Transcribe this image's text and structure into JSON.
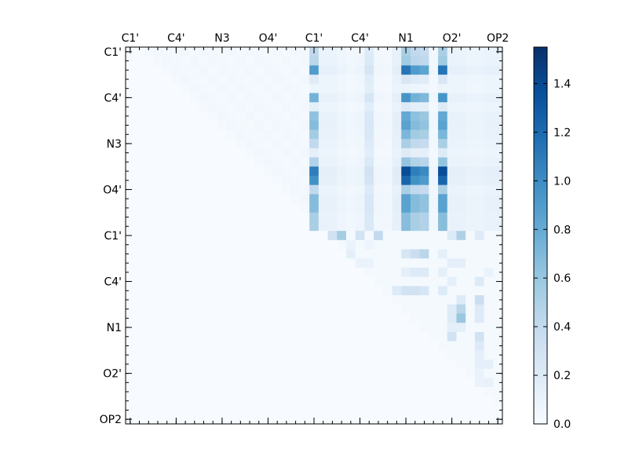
{
  "chart_data": {
    "type": "heatmap",
    "title": "",
    "xlabel": "",
    "ylabel": "",
    "size": 41,
    "x_ticklabels": [
      "C1'",
      "C4'",
      "N3",
      "O4'",
      "C1'",
      "C4'",
      "N1",
      "O2'",
      "OP2"
    ],
    "x_tick_positions": [
      0,
      5,
      10,
      15,
      20,
      25,
      30,
      35,
      40
    ],
    "y_ticklabels": [
      "C1'",
      "C4'",
      "N3",
      "O4'",
      "C1'",
      "C4'",
      "N1",
      "O2'",
      "OP2"
    ],
    "y_tick_positions": [
      0,
      5,
      10,
      15,
      20,
      25,
      30,
      35,
      40
    ],
    "x_ticks_position": "top",
    "colormap": "Blues",
    "colors": {
      "cmap_low": "#f7fbff",
      "cmap_high": "#08306b",
      "axis": "#000000",
      "background": "#ffffff"
    },
    "color_range": [
      0,
      1.55
    ],
    "colorbar": {
      "ticks": [
        0.0,
        0.2,
        0.4,
        0.6,
        0.8,
        1.0,
        1.2,
        1.4
      ],
      "ticklabels": [
        "0.0",
        "0.2",
        "0.4",
        "0.6",
        "0.8",
        "1.0",
        "1.2",
        "1.4"
      ],
      "placement": "right"
    },
    "notes_on_values": "Approximate read of upper-triangular matrix; unlisted cells are ~0.",
    "block_ranges": {
      "residue_a_to_b": {
        "rows": [
          0,
          20
        ],
        "cols": [
          20,
          41
        ]
      },
      "residue_b_internal": {
        "rows": [
          20,
          41
        ],
        "cols": [
          20,
          41
        ]
      }
    },
    "column_profiles": {
      "col_20": 0.75,
      "col_21": 0.12,
      "col_22": 0.12,
      "col_23": 0.08,
      "col_24": 0.06,
      "col_25": 0.08,
      "col_26": 0.25,
      "col_27": 0.06,
      "col_28": 0.05,
      "col_29": 0.15,
      "col_30": 0.95,
      "col_31": 0.75,
      "col_32": 0.7,
      "col_33": 0.06,
      "col_34": 0.95,
      "col_35": 0.12,
      "col_36": 0.12,
      "col_37": 0.1,
      "col_38": 0.1,
      "col_39": 0.12,
      "col_40": 0.12
    },
    "row_strengths": {
      "row_0": 0.55,
      "row_1": 0.6,
      "row_2": 1.2,
      "row_3": 0.25,
      "row_4": 0.1,
      "row_5": 1.0,
      "row_6": 0.2,
      "row_7": 0.85,
      "row_8": 0.9,
      "row_9": 0.75,
      "row_10": 0.55,
      "row_11": 0.2,
      "row_12": 0.65,
      "row_13": 1.45,
      "row_14": 1.3,
      "row_15": 0.55,
      "row_16": 0.9,
      "row_17": 0.9,
      "row_18": 0.7,
      "row_19": 0.7
    },
    "sparse_cells": [
      {
        "r": 20,
        "c": 22,
        "v": 0.3
      },
      {
        "r": 20,
        "c": 23,
        "v": 0.55
      },
      {
        "r": 20,
        "c": 25,
        "v": 0.3
      },
      {
        "r": 20,
        "c": 27,
        "v": 0.4
      },
      {
        "r": 20,
        "c": 35,
        "v": 0.2
      },
      {
        "r": 20,
        "c": 36,
        "v": 0.5
      },
      {
        "r": 20,
        "c": 38,
        "v": 0.2
      },
      {
        "r": 21,
        "c": 24,
        "v": 0.1
      },
      {
        "r": 21,
        "c": 26,
        "v": 0.08
      },
      {
        "r": 22,
        "c": 24,
        "v": 0.15
      },
      {
        "r": 22,
        "c": 30,
        "v": 0.25
      },
      {
        "r": 22,
        "c": 31,
        "v": 0.35
      },
      {
        "r": 22,
        "c": 32,
        "v": 0.45
      },
      {
        "r": 22,
        "c": 34,
        "v": 0.15
      },
      {
        "r": 23,
        "c": 25,
        "v": 0.1
      },
      {
        "r": 23,
        "c": 26,
        "v": 0.1
      },
      {
        "r": 23,
        "c": 35,
        "v": 0.15
      },
      {
        "r": 23,
        "c": 36,
        "v": 0.15
      },
      {
        "r": 24,
        "c": 30,
        "v": 0.15
      },
      {
        "r": 24,
        "c": 31,
        "v": 0.2
      },
      {
        "r": 24,
        "c": 32,
        "v": 0.2
      },
      {
        "r": 24,
        "c": 34,
        "v": 0.15
      },
      {
        "r": 24,
        "c": 39,
        "v": 0.1
      },
      {
        "r": 25,
        "c": 35,
        "v": 0.15
      },
      {
        "r": 25,
        "c": 38,
        "v": 0.2
      },
      {
        "r": 26,
        "c": 29,
        "v": 0.2
      },
      {
        "r": 26,
        "c": 30,
        "v": 0.3
      },
      {
        "r": 26,
        "c": 31,
        "v": 0.3
      },
      {
        "r": 26,
        "c": 32,
        "v": 0.25
      },
      {
        "r": 26,
        "c": 34,
        "v": 0.2
      },
      {
        "r": 27,
        "c": 36,
        "v": 0.2
      },
      {
        "r": 27,
        "c": 38,
        "v": 0.35
      },
      {
        "r": 28,
        "c": 35,
        "v": 0.2
      },
      {
        "r": 28,
        "c": 36,
        "v": 0.45
      },
      {
        "r": 28,
        "c": 38,
        "v": 0.2
      },
      {
        "r": 29,
        "c": 35,
        "v": 0.2
      },
      {
        "r": 29,
        "c": 36,
        "v": 0.6
      },
      {
        "r": 29,
        "c": 38,
        "v": 0.2
      },
      {
        "r": 30,
        "c": 35,
        "v": 0.15
      },
      {
        "r": 30,
        "c": 36,
        "v": 0.15
      },
      {
        "r": 31,
        "c": 35,
        "v": 0.3
      },
      {
        "r": 31,
        "c": 38,
        "v": 0.3
      },
      {
        "r": 32,
        "c": 38,
        "v": 0.2
      },
      {
        "r": 33,
        "c": 38,
        "v": 0.15
      },
      {
        "r": 34,
        "c": 38,
        "v": 0.15
      },
      {
        "r": 34,
        "c": 39,
        "v": 0.15
      },
      {
        "r": 35,
        "c": 38,
        "v": 0.1
      },
      {
        "r": 36,
        "c": 38,
        "v": 0.1
      },
      {
        "r": 36,
        "c": 39,
        "v": 0.12
      }
    ]
  }
}
